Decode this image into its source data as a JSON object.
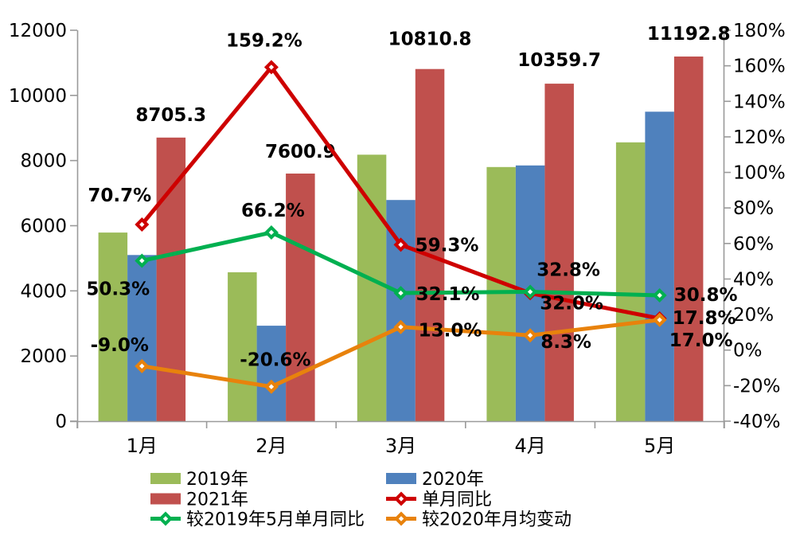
{
  "chart_data": {
    "type": "bar+line",
    "title": "",
    "categories": [
      "1月",
      "2月",
      "3月",
      "4月",
      "5月"
    ],
    "bar_series": [
      {
        "name": "2019年",
        "color": "#9BBB59",
        "values": [
          5790,
          4570,
          8180,
          7800,
          8560
        ],
        "labeled": false
      },
      {
        "name": "2020年",
        "color": "#4F81BD",
        "values": [
          5100,
          2930,
          6790,
          7850,
          9500
        ],
        "labeled": false
      },
      {
        "name": "2021年",
        "color": "#C0504D",
        "values": [
          8705.3,
          7600.9,
          10810.8,
          10359.7,
          11192.8
        ],
        "labeled": true,
        "labels": [
          "8705.3",
          "7600.9",
          "10810.8",
          "10359.7",
          "11192.8"
        ]
      }
    ],
    "line_series": [
      {
        "name": "单月同比",
        "color": "#CE0000",
        "axis": "right",
        "marker": "diamond",
        "values": [
          70.7,
          159.2,
          59.3,
          32.0,
          17.8
        ],
        "labels": [
          "70.7%",
          "159.2%",
          "59.3%",
          "32.0%",
          "17.8%"
        ]
      },
      {
        "name": "较2019年5月单月同比",
        "color": "#00B050",
        "axis": "right",
        "marker": "diamond",
        "values": [
          50.3,
          66.2,
          32.1,
          32.8,
          30.8
        ],
        "labels": [
          "50.3%",
          "66.2%",
          "32.1%",
          "32.8%",
          "30.8%"
        ]
      },
      {
        "name": "较2020年月均变动",
        "color": "#E8820C",
        "axis": "right",
        "marker": "diamond",
        "values": [
          -9.0,
          -20.6,
          13.0,
          8.3,
          17.0
        ],
        "labels": [
          "-9.0%",
          "-20.6%",
          "13.0%",
          "8.3%",
          "17.0%"
        ]
      }
    ],
    "left_axis": {
      "min": 0,
      "max": 12000,
      "step": 2000,
      "tick_labels": [
        "0",
        "2000",
        "4000",
        "6000",
        "8000",
        "10000",
        "12000"
      ]
    },
    "right_axis": {
      "min": -40,
      "max": 180,
      "step": 20,
      "tick_labels": [
        "-40%",
        "-20%",
        "0%",
        "20%",
        "40%",
        "60%",
        "80%",
        "100%",
        "120%",
        "140%",
        "160%",
        "180%"
      ]
    },
    "grid": false,
    "background": "#FFFFFF",
    "axis_color": "#9A9A9A",
    "legend": {
      "position": "bottom",
      "columns": [
        [
          {
            "label": "2019年",
            "type": "bar",
            "color": "#9BBB59"
          },
          {
            "label": "2021年",
            "type": "bar",
            "color": "#C0504D"
          },
          {
            "label": "较2019年5月单月同比",
            "type": "line",
            "color": "#00B050"
          }
        ],
        [
          {
            "label": "2020年",
            "type": "bar",
            "color": "#4F81BD"
          },
          {
            "label": "单月同比",
            "type": "line",
            "color": "#CE0000"
          },
          {
            "label": "较2020年月均变动",
            "type": "line",
            "color": "#E8820C"
          }
        ]
      ]
    }
  }
}
